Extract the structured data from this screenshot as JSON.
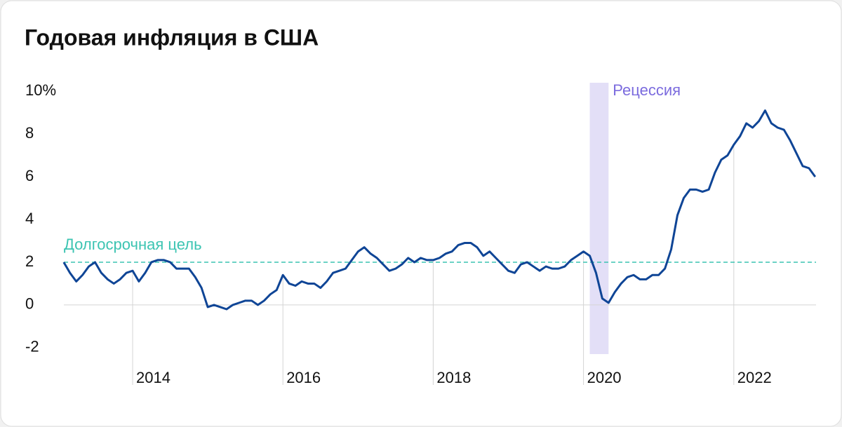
{
  "chart_data": {
    "type": "line",
    "title": "Годовая инфляция в США",
    "x": [
      "2013-02",
      "2013-03",
      "2013-04",
      "2013-05",
      "2013-06",
      "2013-07",
      "2013-08",
      "2013-09",
      "2013-10",
      "2013-11",
      "2013-12",
      "2014-01",
      "2014-02",
      "2014-03",
      "2014-04",
      "2014-05",
      "2014-06",
      "2014-07",
      "2014-08",
      "2014-09",
      "2014-10",
      "2014-11",
      "2014-12",
      "2015-01",
      "2015-02",
      "2015-03",
      "2015-04",
      "2015-05",
      "2015-06",
      "2015-07",
      "2015-08",
      "2015-09",
      "2015-10",
      "2015-11",
      "2015-12",
      "2016-01",
      "2016-02",
      "2016-03",
      "2016-04",
      "2016-05",
      "2016-06",
      "2016-07",
      "2016-08",
      "2016-09",
      "2016-10",
      "2016-11",
      "2016-12",
      "2017-01",
      "2017-02",
      "2017-03",
      "2017-04",
      "2017-05",
      "2017-06",
      "2017-07",
      "2017-08",
      "2017-09",
      "2017-10",
      "2017-11",
      "2017-12",
      "2018-01",
      "2018-02",
      "2018-03",
      "2018-04",
      "2018-05",
      "2018-06",
      "2018-07",
      "2018-08",
      "2018-09",
      "2018-10",
      "2018-11",
      "2018-12",
      "2019-01",
      "2019-02",
      "2019-03",
      "2019-04",
      "2019-05",
      "2019-06",
      "2019-07",
      "2019-08",
      "2019-09",
      "2019-10",
      "2019-11",
      "2019-12",
      "2020-01",
      "2020-02",
      "2020-03",
      "2020-04",
      "2020-05",
      "2020-06",
      "2020-07",
      "2020-08",
      "2020-09",
      "2020-10",
      "2020-11",
      "2020-12",
      "2021-01",
      "2021-02",
      "2021-03",
      "2021-04",
      "2021-05",
      "2021-06",
      "2021-07",
      "2021-08",
      "2021-09",
      "2021-10",
      "2021-11",
      "2021-12",
      "2022-01",
      "2022-02",
      "2022-03",
      "2022-04",
      "2022-05",
      "2022-06",
      "2022-07",
      "2022-08",
      "2022-09",
      "2022-10",
      "2022-11",
      "2022-12",
      "2023-01",
      "2023-02"
    ],
    "series": [
      {
        "color": "#0f4596",
        "values": [
          2.0,
          1.5,
          1.1,
          1.4,
          1.8,
          2.0,
          1.5,
          1.2,
          1.0,
          1.2,
          1.5,
          1.6,
          1.1,
          1.5,
          2.0,
          2.1,
          2.1,
          2.0,
          1.7,
          1.7,
          1.7,
          1.3,
          0.8,
          -0.1,
          0.0,
          -0.1,
          -0.2,
          0.0,
          0.1,
          0.2,
          0.2,
          0.0,
          0.2,
          0.5,
          0.7,
          1.4,
          1.0,
          0.9,
          1.1,
          1.0,
          1.0,
          0.8,
          1.1,
          1.5,
          1.6,
          1.7,
          2.1,
          2.5,
          2.7,
          2.4,
          2.2,
          1.9,
          1.6,
          1.7,
          1.9,
          2.2,
          2.0,
          2.2,
          2.1,
          2.1,
          2.2,
          2.4,
          2.5,
          2.8,
          2.9,
          2.9,
          2.7,
          2.3,
          2.5,
          2.2,
          1.9,
          1.6,
          1.5,
          1.9,
          2.0,
          1.8,
          1.6,
          1.8,
          1.7,
          1.7,
          1.8,
          2.1,
          2.3,
          2.5,
          2.3,
          1.5,
          0.3,
          0.1,
          0.6,
          1.0,
          1.3,
          1.4,
          1.2,
          1.2,
          1.4,
          1.4,
          1.7,
          2.6,
          4.2,
          5.0,
          5.4,
          5.4,
          5.3,
          5.4,
          6.2,
          6.8,
          7.0,
          7.5,
          7.9,
          8.5,
          8.3,
          8.6,
          9.1,
          8.5,
          8.3,
          8.2,
          7.7,
          7.1,
          6.5,
          6.4,
          6.0
        ]
      }
    ],
    "xticks": [
      2014,
      2016,
      2018,
      2020,
      2022
    ],
    "ylim": [
      -2.3,
      10.4
    ],
    "yticks": [
      -2,
      0,
      2,
      4,
      6,
      8,
      {
        "value": 10,
        "label": "10%"
      }
    ],
    "target": {
      "label": "Долгосрочная цель",
      "value": 2,
      "color": "#3cc4b2"
    },
    "recession": {
      "label": "Рецессия",
      "start": "2020-02",
      "end": "2020-04",
      "color": "#e3dff7",
      "label_color": "#7b6bde"
    }
  }
}
